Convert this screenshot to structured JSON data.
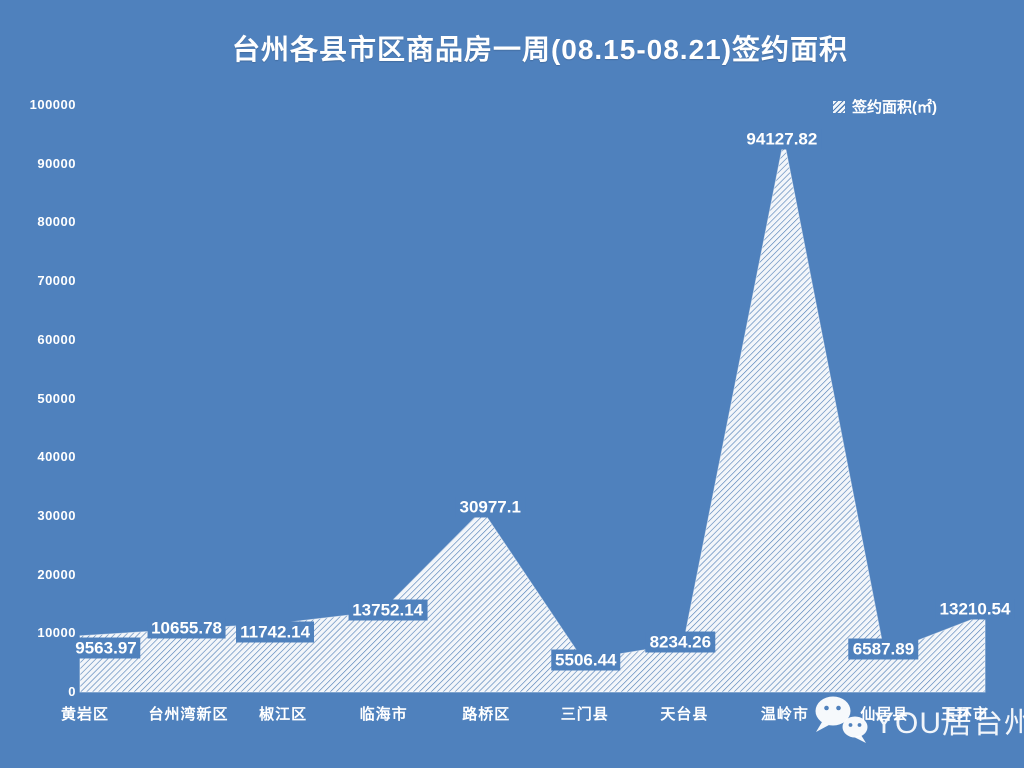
{
  "page": {
    "title": "台州各县市区商品房一周(08.15-08.21)签约面积",
    "background_color": "#4f81bd",
    "text_color": "#ffffff"
  },
  "legend": {
    "label": "签约面积(㎡)",
    "marker": "hatched-square"
  },
  "chart_data": {
    "type": "area",
    "title": "台州各县市区商品房一周(08.15-08.21)签约面积",
    "categories": [
      "黄岩区",
      "台州湾新区",
      "椒江区",
      "临海市",
      "路桥区",
      "三门县",
      "天台县",
      "温岭市",
      "仙居县",
      "玉环市"
    ],
    "series": [
      {
        "name": "签约面积(㎡)",
        "values": [
          9563.97,
          10655.78,
          11742.14,
          13752.14,
          30977.1,
          5506.44,
          8234.26,
          94127.82,
          6587.89,
          13210.54
        ]
      }
    ],
    "data_labels": [
      "9563.97",
      "10655.78",
      "11742.14",
      "13752.14",
      "30977.1",
      "5506.44",
      "8234.26",
      "94127.82",
      "6587.89",
      "13210.54"
    ],
    "xlabel": "",
    "ylabel": "",
    "ylim": [
      0,
      100000
    ],
    "ytick_interval": 10000,
    "grid": false,
    "legend_position": "top-right",
    "fill_style": "white-diagonal-hatch"
  },
  "watermark": {
    "text": "YOU居台州",
    "icon": "wechat-icon"
  },
  "colors": {
    "background": "#4f81bd",
    "hatch_fill": "#f3f6fa",
    "hatch_line": "#4c7cb5",
    "label_text": "#ffffff"
  }
}
